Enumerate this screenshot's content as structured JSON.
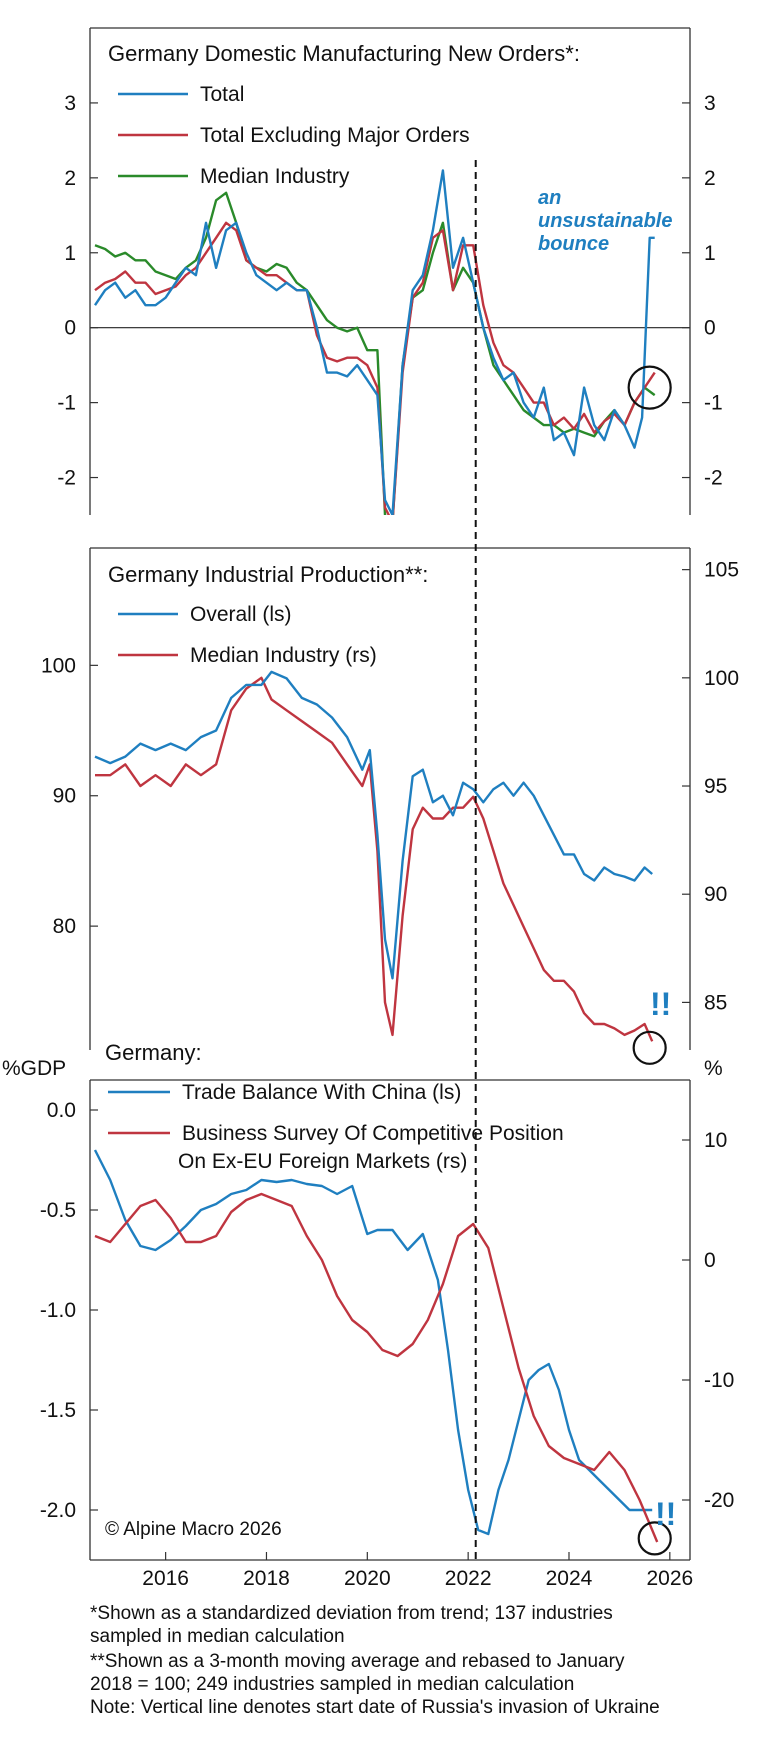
{
  "colors": {
    "blue": "#1f7fc0",
    "red": "#bf3540",
    "green": "#2a8a2a",
    "axis": "#333333",
    "annotation": "#1f7fc0"
  },
  "shared_x": {
    "ticks": [
      "2016",
      "2018",
      "2020",
      "2022",
      "2024",
      "2026"
    ],
    "xlim": [
      2014.5,
      2026.4
    ],
    "invasion_date": 2022.15
  },
  "chart_data": [
    {
      "type": "line",
      "title": "Germany Domestic Manufacturing New Orders*:",
      "ylim": [
        -2.5,
        4.0
      ],
      "y_ticks": [
        3,
        2,
        1,
        0,
        -1,
        -2
      ],
      "y_tick_labels": [
        "3",
        "2",
        "1",
        "0",
        "-1",
        "-2"
      ],
      "annotation": {
        "lines": [
          "an",
          "unsustainable",
          "bounce"
        ]
      },
      "series": [
        {
          "name": "Total",
          "color": "#1f7fc0",
          "x": [
            2014.6,
            2014.8,
            2015.0,
            2015.2,
            2015.4,
            2015.6,
            2015.8,
            2016.0,
            2016.2,
            2016.4,
            2016.6,
            2016.8,
            2017.0,
            2017.2,
            2017.4,
            2017.6,
            2017.8,
            2018.0,
            2018.2,
            2018.4,
            2018.6,
            2018.8,
            2019.0,
            2019.2,
            2019.4,
            2019.6,
            2019.8,
            2020.0,
            2020.2,
            2020.35,
            2020.5,
            2020.7,
            2020.9,
            2021.1,
            2021.3,
            2021.5,
            2021.7,
            2021.9,
            2022.1,
            2022.3,
            2022.5,
            2022.7,
            2022.9,
            2023.1,
            2023.3,
            2023.5,
            2023.7,
            2023.9,
            2024.1,
            2024.3,
            2024.5,
            2024.7,
            2024.9,
            2025.1,
            2025.3,
            2025.45,
            2025.6,
            2025.7
          ],
          "y": [
            0.3,
            0.5,
            0.6,
            0.4,
            0.5,
            0.3,
            0.3,
            0.4,
            0.6,
            0.8,
            0.7,
            1.4,
            0.8,
            1.3,
            1.4,
            1.0,
            0.7,
            0.6,
            0.5,
            0.6,
            0.5,
            0.5,
            0.0,
            -0.6,
            -0.6,
            -0.65,
            -0.5,
            -0.7,
            -0.9,
            -2.3,
            -2.5,
            -0.5,
            0.5,
            0.7,
            1.3,
            2.1,
            0.8,
            1.2,
            0.6,
            0.0,
            -0.4,
            -0.7,
            -0.6,
            -1.0,
            -1.2,
            -0.8,
            -1.5,
            -1.4,
            -1.7,
            -0.8,
            -1.3,
            -1.5,
            -1.1,
            -1.3,
            -1.6,
            -1.2,
            1.2,
            1.2
          ]
        },
        {
          "name": "Total Excluding Major Orders",
          "color": "#bf3540",
          "x": [
            2014.6,
            2014.8,
            2015.0,
            2015.2,
            2015.4,
            2015.6,
            2015.8,
            2016.0,
            2016.2,
            2016.4,
            2016.6,
            2016.8,
            2017.0,
            2017.2,
            2017.4,
            2017.6,
            2017.8,
            2018.0,
            2018.2,
            2018.4,
            2018.6,
            2018.8,
            2019.0,
            2019.2,
            2019.4,
            2019.6,
            2019.8,
            2020.0,
            2020.2,
            2020.35,
            2020.5,
            2020.7,
            2020.9,
            2021.1,
            2021.3,
            2021.5,
            2021.7,
            2021.9,
            2022.1,
            2022.3,
            2022.5,
            2022.7,
            2022.9,
            2023.1,
            2023.3,
            2023.5,
            2023.7,
            2023.9,
            2024.1,
            2024.3,
            2024.5,
            2024.7,
            2024.9,
            2025.1,
            2025.3,
            2025.5,
            2025.7
          ],
          "y": [
            0.5,
            0.6,
            0.65,
            0.75,
            0.6,
            0.6,
            0.45,
            0.5,
            0.55,
            0.7,
            0.8,
            1.0,
            1.2,
            1.4,
            1.3,
            0.9,
            0.8,
            0.7,
            0.7,
            0.6,
            0.5,
            0.5,
            -0.1,
            -0.4,
            -0.45,
            -0.4,
            -0.4,
            -0.5,
            -0.8,
            -2.4,
            -2.6,
            -0.6,
            0.4,
            0.6,
            1.2,
            1.3,
            0.5,
            1.1,
            1.1,
            0.3,
            -0.2,
            -0.5,
            -0.6,
            -0.8,
            -1.0,
            -1.0,
            -1.3,
            -1.2,
            -1.35,
            -1.15,
            -1.4,
            -1.25,
            -1.15,
            -1.3,
            -1.0,
            -0.8,
            -0.6
          ]
        },
        {
          "name": "Median Industry",
          "color": "#2a8a2a",
          "x": [
            2014.6,
            2014.8,
            2015.0,
            2015.2,
            2015.4,
            2015.6,
            2015.8,
            2016.0,
            2016.2,
            2016.4,
            2016.6,
            2016.8,
            2017.0,
            2017.2,
            2017.4,
            2017.6,
            2017.8,
            2018.0,
            2018.2,
            2018.4,
            2018.6,
            2018.8,
            2019.0,
            2019.2,
            2019.4,
            2019.6,
            2019.8,
            2020.0,
            2020.2,
            2020.35,
            2020.5,
            2020.7,
            2020.9,
            2021.1,
            2021.3,
            2021.5,
            2021.7,
            2021.9,
            2022.1,
            2022.3,
            2022.5,
            2022.7,
            2022.9,
            2023.1,
            2023.3,
            2023.5,
            2023.7,
            2023.9,
            2024.1,
            2024.3,
            2024.5,
            2024.7,
            2024.9,
            2025.1,
            2025.3,
            2025.5,
            2025.7
          ],
          "y": [
            1.1,
            1.05,
            0.95,
            1.0,
            0.9,
            0.9,
            0.75,
            0.7,
            0.65,
            0.8,
            0.9,
            1.2,
            1.7,
            1.8,
            1.4,
            0.9,
            0.8,
            0.75,
            0.85,
            0.8,
            0.6,
            0.5,
            0.3,
            0.1,
            0.0,
            -0.05,
            0.0,
            -0.3,
            -0.3,
            -2.5,
            -2.6,
            -0.5,
            0.4,
            0.5,
            1.0,
            1.4,
            0.5,
            0.8,
            0.6,
            0.0,
            -0.5,
            -0.7,
            -0.9,
            -1.1,
            -1.2,
            -1.3,
            -1.3,
            -1.4,
            -1.35,
            -1.4,
            -1.45,
            -1.25,
            -1.1,
            -1.3,
            -1.0,
            -0.8,
            -0.9
          ]
        }
      ]
    },
    {
      "type": "line",
      "title": "Germany Industrial Production**:",
      "ylim_left": [
        70.5,
        109.0
      ],
      "ylim_right": [
        82.8,
        106.0
      ],
      "y_ticks_left": [
        100,
        90,
        80
      ],
      "y_tick_labels_left": [
        "100",
        "90",
        "80"
      ],
      "y_ticks_right": [
        105,
        100,
        95,
        90,
        85
      ],
      "y_tick_labels_right": [
        "105",
        "100",
        "95",
        "90",
        "85"
      ],
      "annotation": "!!",
      "series": [
        {
          "name": "Overall (ls)",
          "color": "#1f7fc0",
          "axis": "left",
          "x": [
            2014.6,
            2014.9,
            2015.2,
            2015.5,
            2015.8,
            2016.1,
            2016.4,
            2016.7,
            2017.0,
            2017.3,
            2017.6,
            2017.9,
            2018.1,
            2018.4,
            2018.7,
            2019.0,
            2019.3,
            2019.6,
            2019.9,
            2020.05,
            2020.2,
            2020.35,
            2020.5,
            2020.7,
            2020.9,
            2021.1,
            2021.3,
            2021.5,
            2021.7,
            2021.9,
            2022.1,
            2022.3,
            2022.5,
            2022.7,
            2022.9,
            2023.1,
            2023.3,
            2023.5,
            2023.7,
            2023.9,
            2024.1,
            2024.3,
            2024.5,
            2024.7,
            2024.9,
            2025.1,
            2025.3,
            2025.5,
            2025.65
          ],
          "y": [
            93.0,
            92.5,
            93.0,
            94.0,
            93.5,
            94.0,
            93.5,
            94.5,
            95.0,
            97.5,
            98.5,
            98.5,
            99.5,
            99.0,
            97.5,
            97.0,
            96.0,
            94.5,
            92.0,
            93.5,
            87.0,
            79.0,
            76.0,
            85.0,
            91.5,
            92.0,
            89.5,
            90.0,
            88.5,
            91.0,
            90.5,
            89.5,
            90.5,
            91.0,
            90.0,
            91.0,
            90.0,
            88.5,
            87.0,
            85.5,
            85.5,
            84.0,
            83.5,
            84.5,
            84.0,
            83.8,
            83.5,
            84.5,
            84.0
          ]
        },
        {
          "name": "Median Industry (rs)",
          "color": "#bf3540",
          "axis": "right",
          "x": [
            2014.6,
            2014.9,
            2015.2,
            2015.5,
            2015.8,
            2016.1,
            2016.4,
            2016.7,
            2017.0,
            2017.3,
            2017.6,
            2017.9,
            2018.1,
            2018.4,
            2018.7,
            2019.0,
            2019.3,
            2019.6,
            2019.9,
            2020.05,
            2020.2,
            2020.35,
            2020.5,
            2020.7,
            2020.9,
            2021.1,
            2021.3,
            2021.5,
            2021.7,
            2021.9,
            2022.1,
            2022.3,
            2022.5,
            2022.7,
            2022.9,
            2023.1,
            2023.3,
            2023.5,
            2023.7,
            2023.9,
            2024.1,
            2024.3,
            2024.5,
            2024.7,
            2024.9,
            2025.1,
            2025.3,
            2025.5,
            2025.65
          ],
          "y": [
            95.5,
            95.5,
            96.0,
            95.0,
            95.5,
            95.0,
            96.0,
            95.5,
            96.0,
            98.5,
            99.5,
            100.0,
            99.0,
            98.5,
            98.0,
            97.5,
            97.0,
            96.0,
            95.0,
            96.0,
            92.0,
            85.0,
            83.5,
            89.0,
            93.0,
            94.0,
            93.5,
            93.5,
            94.0,
            94.0,
            94.5,
            93.5,
            92.0,
            90.5,
            89.5,
            88.5,
            87.5,
            86.5,
            86.0,
            86.0,
            85.5,
            84.5,
            84.0,
            84.0,
            83.8,
            83.5,
            83.7,
            84.0,
            83.2
          ]
        }
      ]
    },
    {
      "type": "line",
      "title": "Germany:",
      "ylabel_left": "%GDP",
      "ylabel_right": "%",
      "ylim_left": [
        -2.25,
        0.15
      ],
      "ylim_right": [
        -25.0,
        15.0
      ],
      "y_ticks_left": [
        0.0,
        -0.5,
        -1.0,
        -1.5,
        -2.0
      ],
      "y_tick_labels_left": [
        "0.0",
        "-0.5",
        "-1.0",
        "-1.5",
        "-2.0"
      ],
      "y_ticks_right": [
        10,
        0,
        -10,
        -20
      ],
      "y_tick_labels_right": [
        "10",
        "0",
        "-10",
        "-20"
      ],
      "annotation": "!!",
      "copyright": "© Alpine Macro 2026",
      "series": [
        {
          "name": "Trade Balance With China (ls)",
          "color": "#1f7fc0",
          "axis": "left",
          "x": [
            2014.6,
            2014.9,
            2015.2,
            2015.5,
            2015.8,
            2016.1,
            2016.4,
            2016.7,
            2017.0,
            2017.3,
            2017.6,
            2017.9,
            2018.2,
            2018.5,
            2018.8,
            2019.1,
            2019.4,
            2019.7,
            2020.0,
            2020.2,
            2020.5,
            2020.8,
            2021.1,
            2021.4,
            2021.6,
            2021.8,
            2022.0,
            2022.2,
            2022.4,
            2022.6,
            2022.8,
            2023.0,
            2023.2,
            2023.4,
            2023.6,
            2023.8,
            2024.0,
            2024.2,
            2024.4,
            2024.6,
            2024.8,
            2025.0,
            2025.2,
            2025.4,
            2025.65
          ],
          "y": [
            -0.2,
            -0.35,
            -0.55,
            -0.68,
            -0.7,
            -0.65,
            -0.58,
            -0.5,
            -0.47,
            -0.42,
            -0.4,
            -0.35,
            -0.36,
            -0.35,
            -0.37,
            -0.38,
            -0.42,
            -0.38,
            -0.62,
            -0.6,
            -0.6,
            -0.7,
            -0.62,
            -0.85,
            -1.2,
            -1.6,
            -1.9,
            -2.1,
            -2.12,
            -1.9,
            -1.75,
            -1.55,
            -1.35,
            -1.3,
            -1.27,
            -1.4,
            -1.6,
            -1.75,
            -1.8,
            -1.85,
            -1.9,
            -1.95,
            -2.0,
            -2.0,
            -2.0
          ]
        },
        {
          "name": "Business Survey Of Competitive Position On Ex-EU Foreign Markets (rs)",
          "color": "#bf3540",
          "axis": "right",
          "x": [
            2014.6,
            2014.9,
            2015.2,
            2015.5,
            2015.8,
            2016.1,
            2016.4,
            2016.7,
            2017.0,
            2017.3,
            2017.6,
            2017.9,
            2018.2,
            2018.5,
            2018.8,
            2019.1,
            2019.4,
            2019.7,
            2020.0,
            2020.3,
            2020.6,
            2020.9,
            2021.2,
            2021.5,
            2021.8,
            2022.1,
            2022.4,
            2022.7,
            2023.0,
            2023.3,
            2023.6,
            2023.9,
            2024.2,
            2024.5,
            2024.8,
            2025.1,
            2025.4,
            2025.6,
            2025.75
          ],
          "y": [
            2.0,
            1.5,
            3.0,
            4.5,
            5.0,
            3.5,
            1.5,
            1.5,
            2.0,
            4.0,
            5.0,
            5.5,
            5.0,
            4.5,
            2.0,
            0.0,
            -3.0,
            -5.0,
            -6.0,
            -7.5,
            -8.0,
            -7.0,
            -5.0,
            -2.0,
            2.0,
            3.0,
            1.0,
            -4.0,
            -9.0,
            -13.0,
            -15.5,
            -16.5,
            -17.0,
            -17.5,
            -16.0,
            -17.5,
            -20.0,
            -22.0,
            -23.5
          ]
        }
      ]
    }
  ],
  "footnotes": [
    "*Shown as a standardized deviation from trend; 137 industries",
    "sampled in median calculation",
    "**Shown as a 3-month moving average and rebased to January",
    "2018 = 100; 249 industries sampled in median calculation",
    "Note: Vertical line denotes start date of Russia's invasion of Ukraine"
  ]
}
